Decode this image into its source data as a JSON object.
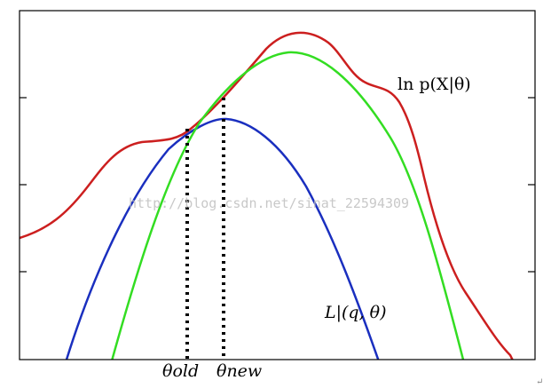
{
  "labels": {
    "log_likelihood": "ln p(X|θ)",
    "lower_bound": "L|(q, θ)",
    "theta_old": "θold",
    "theta_new": "θnew"
  },
  "watermark": "http://blog.csdn.net/sinat_22594309",
  "colors": {
    "log_likelihood": "#cc1f1f",
    "lower_bound_old": "#1a2fbf",
    "lower_bound_new": "#33dd22",
    "frame": "#000000"
  },
  "icons": {
    "corner_mark": "return-arrow-icon"
  }
}
